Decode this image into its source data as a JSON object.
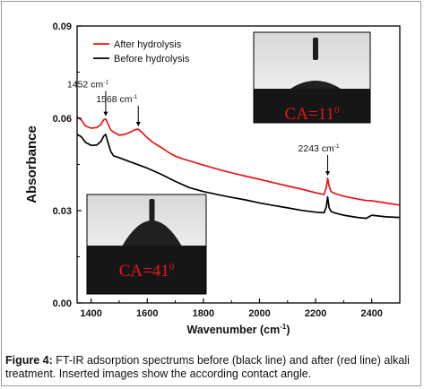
{
  "chart_data": {
    "type": "line",
    "xlabel": "Wavenumber (cm",
    "xlabel_sup": "-1",
    "xlabel_suffix": ")",
    "ylabel": "Absorbance",
    "xlim": [
      1350,
      2500
    ],
    "ylim": [
      0.0,
      0.09
    ],
    "x_ticks": [
      1400,
      1600,
      1800,
      2000,
      2200,
      2400
    ],
    "y_ticks": [
      {
        "value": 0.0,
        "label": "0.00"
      },
      {
        "value": 0.03,
        "label": "0.03"
      },
      {
        "value": 0.06,
        "label": "0.06"
      },
      {
        "value": 0.09,
        "label": "0.09"
      }
    ],
    "grid": false,
    "legend_position": "top-left",
    "series": [
      {
        "name": "After hydrolysis",
        "color": "#e8161b",
        "x": [
          1350,
          1365,
          1380,
          1400,
          1420,
          1435,
          1445,
          1452,
          1460,
          1470,
          1480,
          1500,
          1520,
          1540,
          1555,
          1568,
          1580,
          1600,
          1620,
          1650,
          1680,
          1700,
          1720,
          1750,
          1800,
          1850,
          1900,
          1950,
          2000,
          2050,
          2100,
          2150,
          2200,
          2230,
          2238,
          2243,
          2248,
          2255,
          2270,
          2300,
          2350,
          2380,
          2400,
          2450,
          2500
        ],
        "y": [
          0.0605,
          0.0595,
          0.0575,
          0.0568,
          0.057,
          0.058,
          0.0595,
          0.0598,
          0.0582,
          0.0562,
          0.0555,
          0.0545,
          0.0548,
          0.0555,
          0.0562,
          0.0565,
          0.0555,
          0.0537,
          0.0522,
          0.0505,
          0.0487,
          0.0477,
          0.047,
          0.0462,
          0.0448,
          0.0435,
          0.0423,
          0.0412,
          0.0402,
          0.0391,
          0.038,
          0.037,
          0.0358,
          0.0352,
          0.0375,
          0.0405,
          0.038,
          0.0362,
          0.0355,
          0.0347,
          0.0338,
          0.0333,
          0.0332,
          0.0325,
          0.0318
        ]
      },
      {
        "name": "Before hydrolysis",
        "color": "#000000",
        "x": [
          1350,
          1365,
          1380,
          1400,
          1420,
          1435,
          1445,
          1452,
          1460,
          1470,
          1480,
          1500,
          1550,
          1600,
          1650,
          1700,
          1750,
          1800,
          1850,
          1900,
          1950,
          2000,
          2050,
          2100,
          2150,
          2200,
          2230,
          2238,
          2243,
          2248,
          2255,
          2270,
          2300,
          2350,
          2380,
          2400,
          2450,
          2500
        ],
        "y": [
          0.0548,
          0.054,
          0.0522,
          0.0512,
          0.0513,
          0.0525,
          0.0542,
          0.0548,
          0.0522,
          0.0492,
          0.0478,
          0.0472,
          0.0455,
          0.0438,
          0.0418,
          0.0395,
          0.0375,
          0.0362,
          0.0352,
          0.0343,
          0.0335,
          0.0325,
          0.0317,
          0.0309,
          0.0301,
          0.0295,
          0.0293,
          0.0312,
          0.0345,
          0.031,
          0.0297,
          0.0292,
          0.0285,
          0.0278,
          0.0275,
          0.0285,
          0.028,
          0.0278
        ]
      }
    ],
    "annotations": [
      {
        "text": "1452 cm",
        "sup": "-1",
        "x": 1452,
        "y": 0.0598
      },
      {
        "text": "1568 cm",
        "sup": "-1",
        "x": 1568,
        "y": 0.0565
      },
      {
        "text": "2243 cm",
        "sup": "-1",
        "x": 2243,
        "y": 0.0405
      }
    ],
    "insets": [
      {
        "label": "CA=11",
        "sup": "0",
        "position": "top-right"
      },
      {
        "label": "CA=41",
        "sup": "0",
        "position": "bottom-left"
      }
    ]
  },
  "caption": {
    "prefix": "Figure 4:",
    "text": " FT-IR adsorption spectrums before (black line) and after (red line) alkali treatment. Inserted images show the according contact angle."
  }
}
